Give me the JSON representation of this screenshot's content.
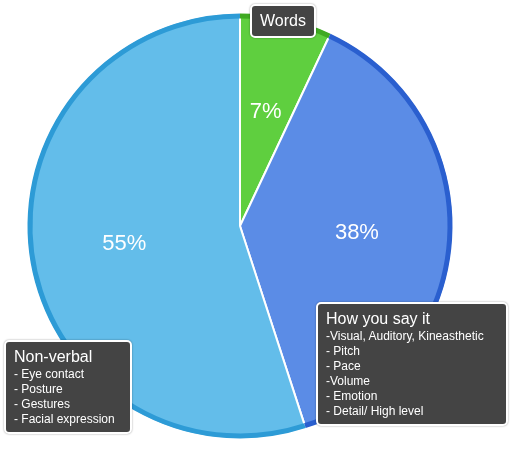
{
  "chart_data": {
    "type": "pie",
    "categories": [
      "Words",
      "How you say it",
      "Non-verbal"
    ],
    "values": [
      7,
      38,
      55
    ],
    "value_labels": [
      "7%",
      "38%",
      "55%"
    ],
    "data_labels": true,
    "colors": [
      "#5fcf3f",
      "#5b8ce6",
      "#63bdea"
    ],
    "annotations": [
      [],
      [
        "-Visual, Auditory, Kineasthetic",
        "- Pitch",
        "- Pace",
        "-Volume",
        "- Emotion",
        "- Detail/ High level"
      ],
      [
        "- Eye contact",
        "- Posture",
        "- Gestures",
        "- Facial expression"
      ]
    ]
  }
}
